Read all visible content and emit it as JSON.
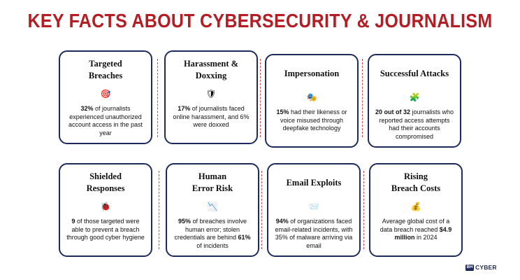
{
  "title": "KEY FACTS ABOUT CYBERSECURITY & JOURNALISM",
  "cards": [
    {
      "heading": "Targeted\nBreaches",
      "icon": "target-icon",
      "glyph": "🎯",
      "parts": [
        {
          "b": "32%"
        },
        {
          "t": " of journalists experienced unauthorized account access in the past year"
        }
      ]
    },
    {
      "heading": "Harassment &\nDoxxing",
      "icon": "shield-icon",
      "glyph": "🛡",
      "parts": [
        {
          "b": "17%"
        },
        {
          "t": " of journalists faced online harassment, and 6% were doxxed"
        }
      ]
    },
    {
      "heading": "Impersonation",
      "icon": "theater-masks-icon",
      "glyph": "🎭",
      "parts": [
        {
          "b": "15%"
        },
        {
          "t": " had their likeness or voice misused through deepfake technology"
        }
      ]
    },
    {
      "heading": "Successful Attacks",
      "icon": "puzzle-piece-icon",
      "glyph": "🧩",
      "parts": [
        {
          "b": "20 out of 32"
        },
        {
          "t": " journalists who reported access attempts had their accounts compromised"
        }
      ]
    },
    {
      "heading": "Shielded\nResponses",
      "icon": "ladybug-icon",
      "glyph": "🐞",
      "parts": [
        {
          "b": "9"
        },
        {
          "t": " of those targeted were able to prevent a breach through good cyber hygiene"
        }
      ]
    },
    {
      "heading": "Human\nError Risk",
      "icon": "chart-decreasing-icon",
      "glyph": "📉",
      "parts": [
        {
          "b": "95%"
        },
        {
          "t": " of breaches involve human error; stolen credentials are behind "
        },
        {
          "b": "61%"
        },
        {
          "t": " of incidents"
        }
      ]
    },
    {
      "heading": "Email Exploits",
      "icon": "envelope-icon",
      "glyph": "📨",
      "parts": [
        {
          "b": "94%"
        },
        {
          "t": " of organizations faced email-related incidents, with 35% of malware arriving via email"
        }
      ]
    },
    {
      "heading": "Rising\nBreach Costs",
      "icon": "money-bag-icon",
      "glyph": "💰",
      "parts": [
        {
          "t": "Average global cost of a data breach reached "
        },
        {
          "b": "$4.9 million"
        },
        {
          "t": " in 2024"
        }
      ]
    }
  ],
  "logo": {
    "mark": "BH",
    "word": "CYBER"
  },
  "colors": {
    "title": "#b31d23",
    "card_border": "#1e2a5e",
    "divider": "#c94a4a"
  }
}
